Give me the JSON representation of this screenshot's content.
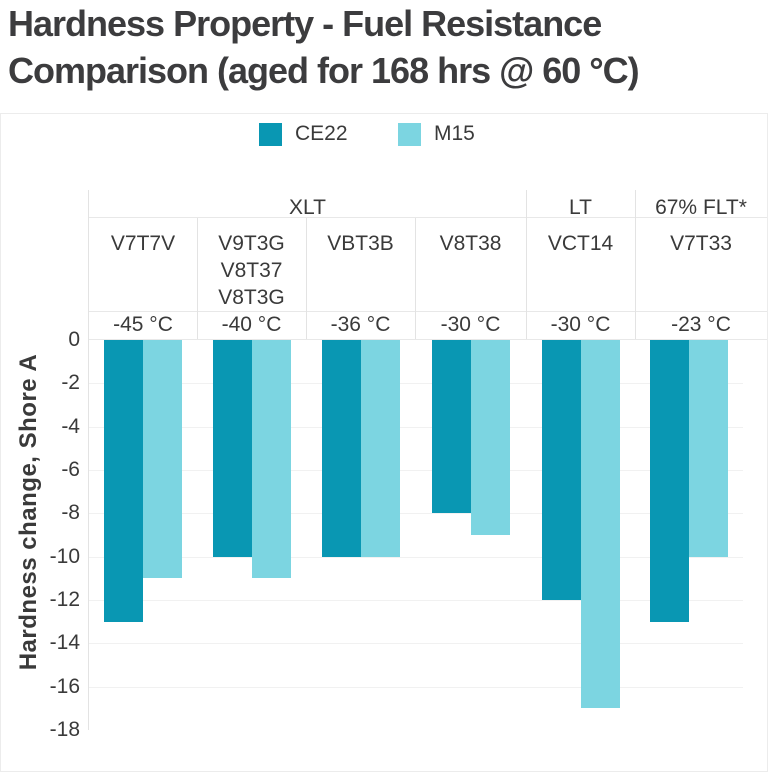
{
  "title": {
    "line1": "Hardness Property - Fuel Resistance",
    "line2": "Comparison (aged for 168 hrs @ 60 °C)"
  },
  "chart_data": {
    "type": "bar",
    "title": "Hardness Property - Fuel Resistance Comparison (aged for 168 hrs @ 60 °C)",
    "ylabel": "Hardness change, Shore A",
    "ylim": [
      -18,
      0
    ],
    "yticks": [
      0,
      -2,
      -4,
      -6,
      -8,
      -10,
      -12,
      -14,
      -16,
      -18
    ],
    "grid": "horizontal",
    "legend_position": "top",
    "group_headers": [
      {
        "label": "XLT",
        "span": 4
      },
      {
        "label": "LT",
        "span": 1
      },
      {
        "label": "67% FLT*",
        "span": 1
      }
    ],
    "categories": [
      {
        "lines": [
          "V7T7V"
        ],
        "temp": "-45 °C"
      },
      {
        "lines": [
          "V9T3G",
          "V8T37",
          "V8T3G"
        ],
        "temp": "-40 °C"
      },
      {
        "lines": [
          "VBT3B"
        ],
        "temp": "-36 °C"
      },
      {
        "lines": [
          "V8T38"
        ],
        "temp": "-30 °C"
      },
      {
        "lines": [
          "VCT14"
        ],
        "temp": "-30 °C"
      },
      {
        "lines": [
          "V7T33"
        ],
        "temp": "-23 °C"
      }
    ],
    "series": [
      {
        "name": "CE22",
        "color": "#0997B3",
        "values": [
          -13,
          -10,
          -10,
          -8,
          -12,
          -13
        ]
      },
      {
        "name": "M15",
        "color": "#7CD5E1",
        "values": [
          -11,
          -11,
          -10,
          -9,
          -17,
          -10
        ]
      }
    ]
  },
  "colors": {
    "title_text": "#3C3C3E",
    "axis_text": "#3A3A3A",
    "grid_line": "#F1F1F1",
    "table_line": "#E8E8E8"
  }
}
